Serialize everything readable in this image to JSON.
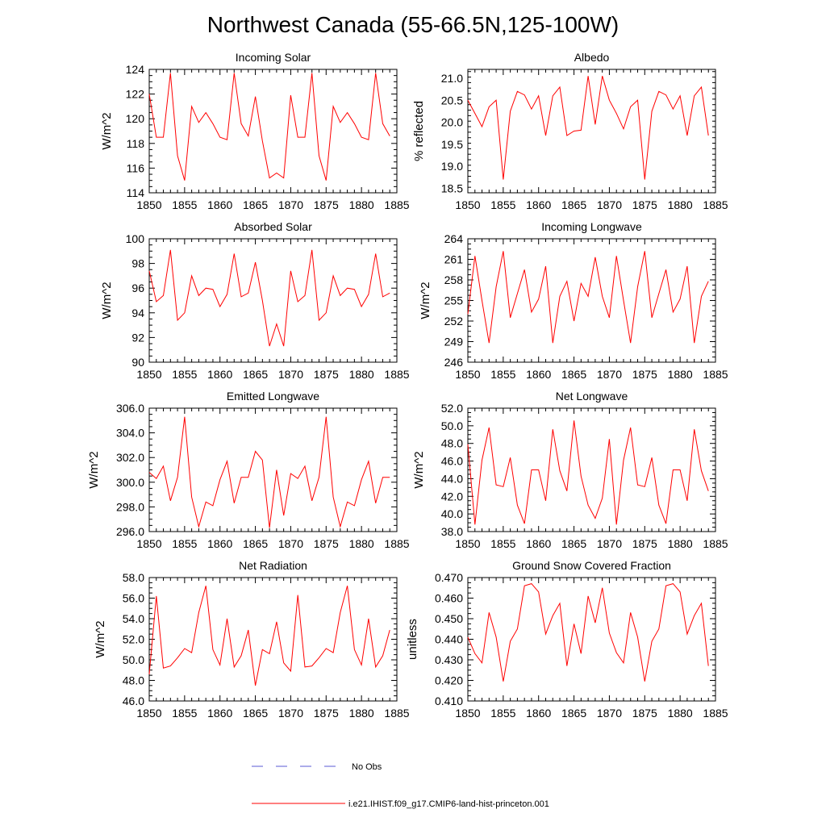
{
  "figure": {
    "title": "Northwest Canada (55-66.5N,125-100W)",
    "series_color": "#ff0000",
    "obs_color": "#5a5ad6",
    "legend": {
      "obs_label": "No Obs",
      "model_label": "i.e21.IHIST.f09_g17.CMIP6-land-hist-princeton.001"
    }
  },
  "chart_data": [
    {
      "type": "line",
      "title": "Incoming Solar",
      "ylabel": "W/m^2",
      "xlim": [
        1850,
        1885
      ],
      "ylim": [
        114,
        124
      ],
      "x_ticks": [
        "1850",
        "1855",
        "1860",
        "1865",
        "1870",
        "1875",
        "1880",
        "1885"
      ],
      "y_ticks": [
        "114",
        "116",
        "118",
        "120",
        "122",
        "124"
      ],
      "y_tick_values": [
        114,
        116,
        118,
        120,
        122,
        124
      ],
      "x": [
        1850,
        1851,
        1852,
        1853,
        1854,
        1855,
        1856,
        1857,
        1858,
        1859,
        1860,
        1861,
        1862,
        1863,
        1864,
        1865,
        1866,
        1867,
        1868,
        1869,
        1870,
        1871,
        1872,
        1873,
        1874,
        1875,
        1876,
        1877,
        1878,
        1879,
        1880,
        1881,
        1882,
        1883,
        1884
      ],
      "values": [
        122.0,
        118.5,
        118.5,
        123.7,
        117.0,
        115.0,
        121.0,
        119.7,
        120.5,
        119.6,
        118.5,
        118.3,
        123.7,
        119.6,
        118.6,
        121.8,
        118.2,
        115.2,
        115.6,
        115.2,
        121.9,
        118.5,
        118.5,
        123.7,
        117.0,
        115.0,
        121.0,
        119.7,
        120.5,
        119.6,
        118.5,
        118.3,
        123.7,
        119.6,
        118.6
      ]
    },
    {
      "type": "line",
      "title": "Albedo",
      "ylabel": "% reflected",
      "xlim": [
        1850,
        1885
      ],
      "ylim": [
        18.4,
        21.2
      ],
      "x_ticks": [
        "1850",
        "1855",
        "1860",
        "1865",
        "1870",
        "1875",
        "1880",
        "1885"
      ],
      "y_ticks": [
        "18.5",
        "19.0",
        "19.5",
        "20.0",
        "20.5",
        "21.0"
      ],
      "y_tick_values": [
        18.5,
        19.0,
        19.5,
        20.0,
        20.5,
        21.0
      ],
      "x": [
        1850,
        1851,
        1852,
        1853,
        1854,
        1855,
        1856,
        1857,
        1858,
        1859,
        1860,
        1861,
        1862,
        1863,
        1864,
        1865,
        1866,
        1867,
        1868,
        1869,
        1870,
        1871,
        1872,
        1873,
        1874,
        1875,
        1876,
        1877,
        1878,
        1879,
        1880,
        1881,
        1882,
        1883,
        1884
      ],
      "values": [
        20.5,
        20.2,
        19.9,
        20.35,
        20.5,
        18.7,
        20.25,
        20.7,
        20.62,
        20.3,
        20.6,
        19.7,
        20.6,
        20.8,
        19.7,
        19.8,
        19.82,
        21.05,
        19.95,
        21.05,
        20.5,
        20.2,
        19.85,
        20.35,
        20.5,
        18.7,
        20.25,
        20.7,
        20.62,
        20.3,
        20.6,
        19.7,
        20.6,
        20.8,
        19.7
      ]
    },
    {
      "type": "line",
      "title": "Absorbed Solar",
      "ylabel": "W/m^2",
      "xlim": [
        1850,
        1885
      ],
      "ylim": [
        90,
        100
      ],
      "x_ticks": [
        "1850",
        "1855",
        "1860",
        "1865",
        "1870",
        "1875",
        "1880",
        "1885"
      ],
      "y_ticks": [
        "90",
        "92",
        "94",
        "96",
        "98",
        "100"
      ],
      "y_tick_values": [
        90,
        92,
        94,
        96,
        98,
        100
      ],
      "x": [
        1850,
        1851,
        1852,
        1853,
        1854,
        1855,
        1856,
        1857,
        1858,
        1859,
        1860,
        1861,
        1862,
        1863,
        1864,
        1865,
        1866,
        1867,
        1868,
        1869,
        1870,
        1871,
        1872,
        1873,
        1874,
        1875,
        1876,
        1877,
        1878,
        1879,
        1880,
        1881,
        1882,
        1883,
        1884
      ],
      "values": [
        97.4,
        94.9,
        95.4,
        99.1,
        93.4,
        94.0,
        97.0,
        95.4,
        96.0,
        95.9,
        94.5,
        95.5,
        98.8,
        95.3,
        95.6,
        98.1,
        95.0,
        91.3,
        93.1,
        91.3,
        97.4,
        94.9,
        95.4,
        99.1,
        93.4,
        94.0,
        97.0,
        95.4,
        96.0,
        95.9,
        94.5,
        95.5,
        98.8,
        95.3,
        95.6
      ]
    },
    {
      "type": "line",
      "title": "Incoming Longwave",
      "ylabel": "W/m^2",
      "xlim": [
        1850,
        1885
      ],
      "ylim": [
        246,
        264
      ],
      "x_ticks": [
        "1850",
        "1855",
        "1860",
        "1865",
        "1870",
        "1875",
        "1880",
        "1885"
      ],
      "y_ticks": [
        "246",
        "249",
        "252",
        "255",
        "258",
        "261",
        "264"
      ],
      "y_tick_values": [
        246,
        249,
        252,
        255,
        258,
        261,
        264
      ],
      "x": [
        1850,
        1851,
        1852,
        1853,
        1854,
        1855,
        1856,
        1857,
        1858,
        1859,
        1860,
        1861,
        1862,
        1863,
        1864,
        1865,
        1866,
        1867,
        1868,
        1869,
        1870,
        1871,
        1872,
        1873,
        1874,
        1875,
        1876,
        1877,
        1878,
        1879,
        1880,
        1881,
        1882,
        1883,
        1884
      ],
      "values": [
        253.0,
        261.5,
        255.0,
        248.8,
        257.0,
        262.2,
        252.5,
        256.0,
        259.5,
        253.3,
        255.2,
        260.0,
        248.8,
        255.6,
        257.8,
        252.0,
        257.5,
        255.6,
        261.3,
        255.6,
        252.5,
        261.5,
        255.0,
        248.8,
        257.0,
        262.2,
        252.5,
        256.0,
        259.5,
        253.3,
        255.2,
        260.0,
        248.8,
        255.6,
        257.8
      ]
    },
    {
      "type": "line",
      "title": "Emitted Longwave",
      "ylabel": "W/m^2",
      "xlim": [
        1850,
        1885
      ],
      "ylim": [
        296.0,
        306.0
      ],
      "x_ticks": [
        "1850",
        "1855",
        "1860",
        "1865",
        "1870",
        "1875",
        "1880",
        "1885"
      ],
      "y_ticks": [
        "296.0",
        "298.0",
        "300.0",
        "302.0",
        "304.0",
        "306.0"
      ],
      "y_tick_values": [
        296,
        298,
        300,
        302,
        304,
        306
      ],
      "x": [
        1850,
        1851,
        1852,
        1853,
        1854,
        1855,
        1856,
        1857,
        1858,
        1859,
        1860,
        1861,
        1862,
        1863,
        1864,
        1865,
        1866,
        1867,
        1868,
        1869,
        1870,
        1871,
        1872,
        1873,
        1874,
        1875,
        1876,
        1877,
        1878,
        1879,
        1880,
        1881,
        1882,
        1883,
        1884
      ],
      "values": [
        300.8,
        300.3,
        301.3,
        298.5,
        300.4,
        305.3,
        298.8,
        296.4,
        298.4,
        298.1,
        300.2,
        301.7,
        298.3,
        300.4,
        300.4,
        302.5,
        301.8,
        296.3,
        301.0,
        297.3,
        300.7,
        300.3,
        301.3,
        298.5,
        300.4,
        305.3,
        298.8,
        296.4,
        298.4,
        298.1,
        300.2,
        301.7,
        298.3,
        300.4,
        300.4
      ]
    },
    {
      "type": "line",
      "title": "Net Longwave",
      "ylabel": "W/m^2",
      "xlim": [
        1850,
        1885
      ],
      "ylim": [
        38.0,
        52.0
      ],
      "x_ticks": [
        "1850",
        "1855",
        "1860",
        "1865",
        "1870",
        "1875",
        "1880",
        "1885"
      ],
      "y_ticks": [
        "38.0",
        "40.0",
        "42.0",
        "44.0",
        "46.0",
        "48.0",
        "50.0",
        "52.0"
      ],
      "y_tick_values": [
        38,
        40,
        42,
        44,
        46,
        48,
        50,
        52
      ],
      "x": [
        1850,
        1851,
        1852,
        1853,
        1854,
        1855,
        1856,
        1857,
        1858,
        1859,
        1860,
        1861,
        1862,
        1863,
        1864,
        1865,
        1866,
        1867,
        1868,
        1869,
        1870,
        1871,
        1872,
        1873,
        1874,
        1875,
        1876,
        1877,
        1878,
        1879,
        1880,
        1881,
        1882,
        1883,
        1884
      ],
      "values": [
        47.9,
        38.8,
        46.1,
        49.8,
        43.3,
        43.1,
        46.4,
        41.0,
        38.9,
        45.0,
        45.0,
        41.5,
        49.6,
        44.9,
        42.6,
        50.6,
        44.3,
        41.0,
        39.5,
        41.8,
        48.5,
        38.8,
        46.1,
        49.8,
        43.3,
        43.1,
        46.4,
        41.0,
        38.9,
        45.0,
        45.0,
        41.5,
        49.6,
        44.9,
        42.6
      ]
    },
    {
      "type": "line",
      "title": "Net Radiation",
      "ylabel": "W/m^2",
      "xlim": [
        1850,
        1885
      ],
      "ylim": [
        46.0,
        58.0
      ],
      "x_ticks": [
        "1850",
        "1855",
        "1860",
        "1865",
        "1870",
        "1875",
        "1880",
        "1885"
      ],
      "y_ticks": [
        "46.0",
        "48.0",
        "50.0",
        "52.0",
        "54.0",
        "56.0",
        "58.0"
      ],
      "y_tick_values": [
        46,
        48,
        50,
        52,
        54,
        56,
        58
      ],
      "x": [
        1850,
        1851,
        1852,
        1853,
        1854,
        1855,
        1856,
        1857,
        1858,
        1859,
        1860,
        1861,
        1862,
        1863,
        1864,
        1865,
        1866,
        1867,
        1868,
        1869,
        1870,
        1871,
        1872,
        1873,
        1874,
        1875,
        1876,
        1877,
        1878,
        1879,
        1880,
        1881,
        1882,
        1883,
        1884
      ],
      "values": [
        48.6,
        56.2,
        49.2,
        49.4,
        50.2,
        51.1,
        50.7,
        54.6,
        57.2,
        51.0,
        49.5,
        54.0,
        49.3,
        50.4,
        52.9,
        47.5,
        51.0,
        50.6,
        53.7,
        49.7,
        48.9,
        56.3,
        49.3,
        49.4,
        50.2,
        51.1,
        50.7,
        54.6,
        57.2,
        51.0,
        49.5,
        54.0,
        49.3,
        50.4,
        52.9
      ]
    },
    {
      "type": "line",
      "title": "Ground Snow Covered Fraction",
      "ylabel": "unitless",
      "xlim": [
        1850,
        1885
      ],
      "ylim": [
        0.41,
        0.47
      ],
      "x_ticks": [
        "1850",
        "1855",
        "1860",
        "1865",
        "1870",
        "1875",
        "1880",
        "1885"
      ],
      "y_ticks": [
        "0.410",
        "0.420",
        "0.430",
        "0.440",
        "0.450",
        "0.460",
        "0.470"
      ],
      "y_tick_values": [
        0.41,
        0.42,
        0.43,
        0.44,
        0.45,
        0.46,
        0.47
      ],
      "x": [
        1850,
        1851,
        1852,
        1853,
        1854,
        1855,
        1856,
        1857,
        1858,
        1859,
        1860,
        1861,
        1862,
        1863,
        1864,
        1865,
        1866,
        1867,
        1868,
        1869,
        1870,
        1871,
        1872,
        1873,
        1874,
        1875,
        1876,
        1877,
        1878,
        1879,
        1880,
        1881,
        1882,
        1883,
        1884
      ],
      "values": [
        0.441,
        0.433,
        0.4285,
        0.453,
        0.441,
        0.4195,
        0.439,
        0.445,
        0.466,
        0.467,
        0.463,
        0.4425,
        0.4515,
        0.4575,
        0.427,
        0.4475,
        0.433,
        0.461,
        0.448,
        0.465,
        0.443,
        0.4335,
        0.4285,
        0.453,
        0.441,
        0.4195,
        0.439,
        0.445,
        0.466,
        0.467,
        0.463,
        0.4425,
        0.4515,
        0.4575,
        0.427
      ]
    }
  ]
}
